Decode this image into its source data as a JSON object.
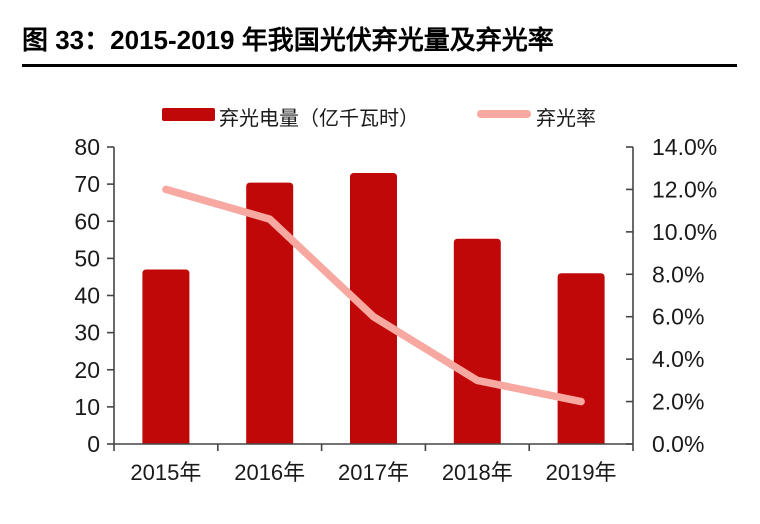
{
  "header": {
    "title": "图 33：2015-2019 年我国光伏弃光量及弃光率",
    "underline_color": "#000000"
  },
  "chart_data": {
    "type": "bar",
    "subtype": "bar-line-combo",
    "title": "图 33：2015-2019 年我国光伏弃光量及弃光率",
    "categories": [
      "2015年",
      "2016年",
      "2017年",
      "2018年",
      "2019年"
    ],
    "series": [
      {
        "name": "弃光电量（亿千瓦时）",
        "type": "bar",
        "axis": "left",
        "values": [
          47,
          70.4,
          73,
          55.3,
          46
        ],
        "color": "#c00808"
      },
      {
        "name": "弃光率",
        "type": "line",
        "axis": "right",
        "unit": "%",
        "values": [
          12.0,
          10.6,
          6.0,
          3.0,
          2.0
        ],
        "color": "#f6a8a1"
      }
    ],
    "left_axis": {
      "min": 0,
      "max": 80,
      "step": 10,
      "ticks": [
        "0",
        "10",
        "20",
        "30",
        "40",
        "50",
        "60",
        "70",
        "80"
      ]
    },
    "right_axis": {
      "min": 0,
      "max": 14,
      "step": 2,
      "ticks": [
        "0.0%",
        "2.0%",
        "4.0%",
        "6.0%",
        "8.0%",
        "10.0%",
        "12.0%",
        "14.0%"
      ]
    },
    "legend_position": "top",
    "grid": false,
    "axis_color": "#454545",
    "label_color": "#1a1a1a"
  }
}
